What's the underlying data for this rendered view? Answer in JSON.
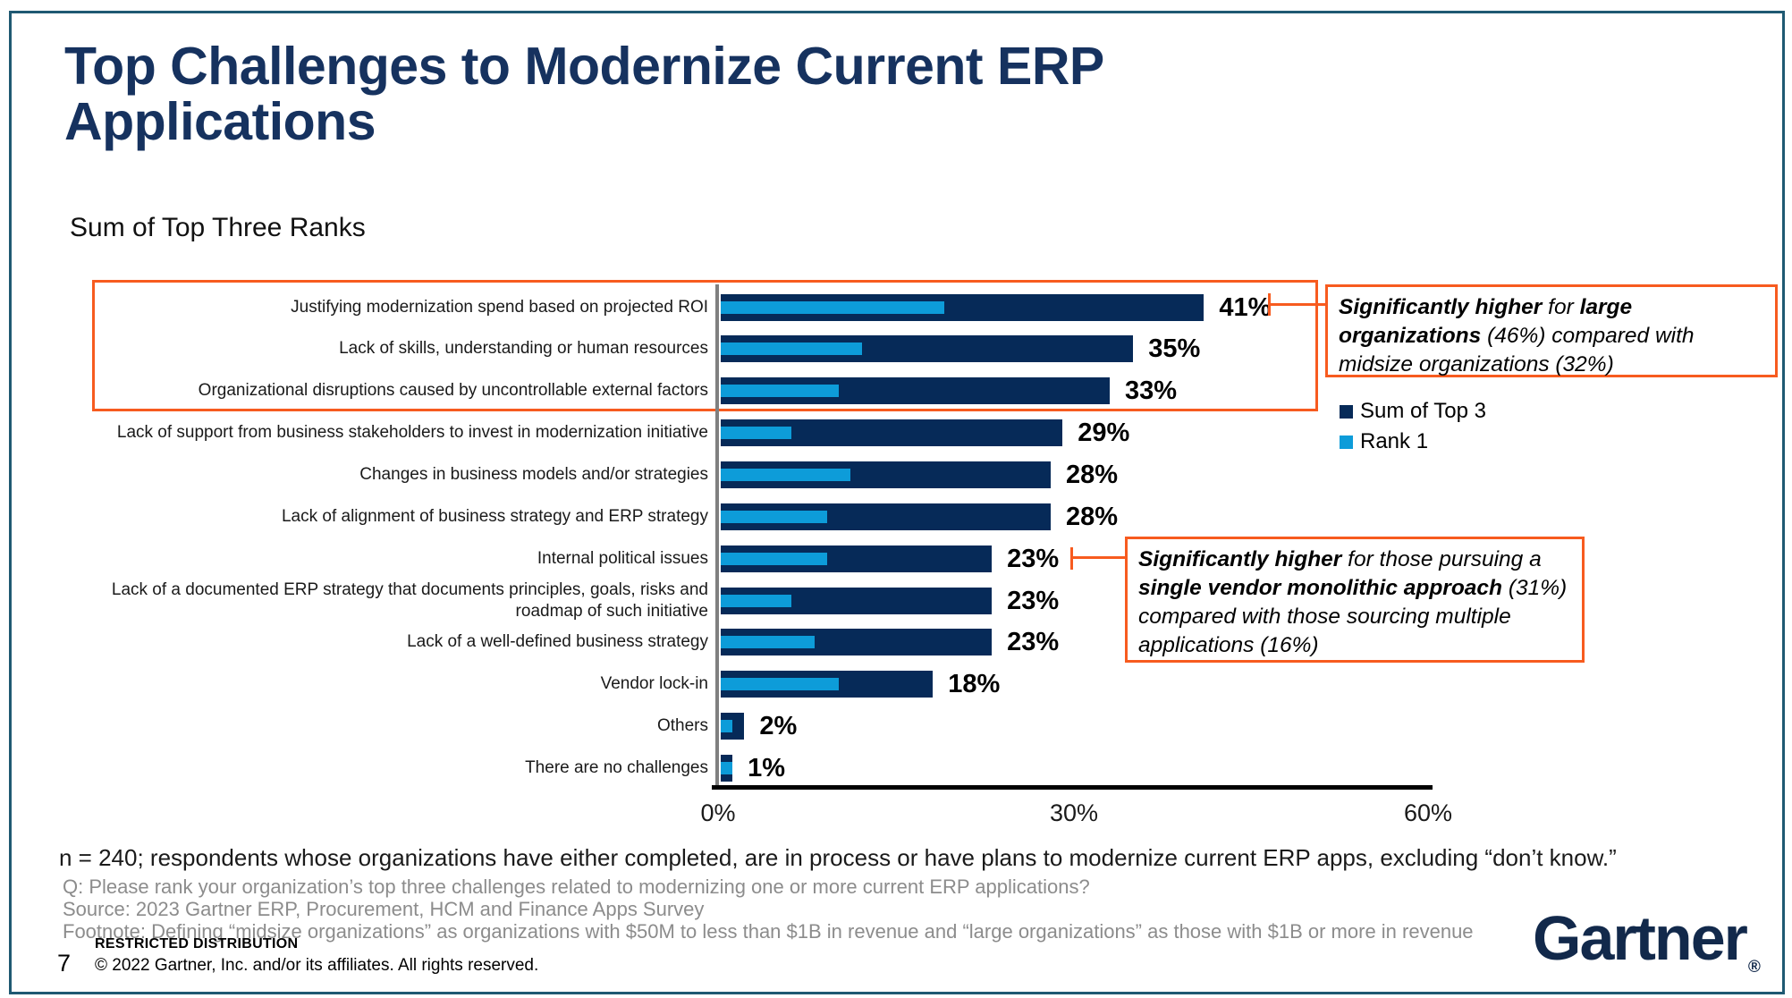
{
  "slide": {
    "title": "Top Challenges to Modernize Current ERP Applications",
    "subtitle": "Sum of Top Three Ranks",
    "page_number": "7",
    "restricted": "RESTRICTED DISTRIBUTION",
    "copyright": "© 2022 Gartner, Inc. and/or its affiliates. All rights reserved.",
    "logo_text": "Gartner",
    "logo_reg": "®"
  },
  "chart_data": {
    "type": "bar",
    "orientation": "horizontal",
    "title": "Sum of Top Three Ranks",
    "xlim": [
      0,
      60
    ],
    "x_tick_labels": [
      "0%",
      "30%",
      "60%"
    ],
    "grid": false,
    "legend_position": "right",
    "categories": [
      "Justifying modernization spend based on projected ROI",
      "Lack of skills, understanding or human resources",
      "Organizational disruptions caused by uncontrollable external factors",
      "Lack of support from business stakeholders to invest in modernization initiative",
      "Changes in business models and/or strategies",
      "Lack of alignment of business strategy and ERP strategy",
      "Internal political issues",
      "Lack of a documented ERP strategy that documents principles, goals, risks and roadmap of such initiative",
      "Lack of a well-defined business strategy",
      "Vendor lock-in",
      "Others",
      "There are no challenges"
    ],
    "series": [
      {
        "name": "Sum of Top 3",
        "color": "#062A58",
        "values": [
          41,
          35,
          33,
          29,
          28,
          28,
          23,
          23,
          23,
          18,
          2,
          1
        ]
      },
      {
        "name": "Rank 1",
        "color": "#0D9CD9",
        "values": [
          19,
          12,
          10,
          6,
          11,
          9,
          9,
          6,
          8,
          10,
          1,
          1
        ]
      }
    ],
    "value_labels": [
      "41%",
      "35%",
      "33%",
      "29%",
      "28%",
      "28%",
      "23%",
      "23%",
      "23%",
      "18%",
      "2%",
      "1%"
    ]
  },
  "legend": [
    {
      "label": "Sum of Top 3"
    },
    {
      "label": "Rank 1"
    }
  ],
  "annotations": {
    "box1": {
      "seg_bold1": "Significantly higher",
      "seg2": " for ",
      "seg_bold3": "large organizations",
      "seg4": " (46%) compared with midsize organizations (32%)"
    },
    "box2": {
      "seg_bold1": "Significantly higher",
      "seg2": " for those pursuing a ",
      "seg_bold3": "single vendor monolithic approach",
      "seg4": " (31%) compared with those sourcing multiple applications (16%)"
    }
  },
  "footer": {
    "n_line": "n = 240; respondents whose organizations have either completed, are in process or have plans to modernize current ERP apps, excluding “don’t know.”",
    "q_line": "Q: Please rank your organization’s top three challenges related to modernizing one or more current ERP applications?",
    "source_line": "Source: 2023 Gartner ERP, Procurement, HCM and Finance Apps Survey",
    "footnote_line": "Footnote: Defining “midsize organizations” as organizations with $50M to less than $1B in revenue and “large organizations” as those with $1B or more in revenue"
  }
}
